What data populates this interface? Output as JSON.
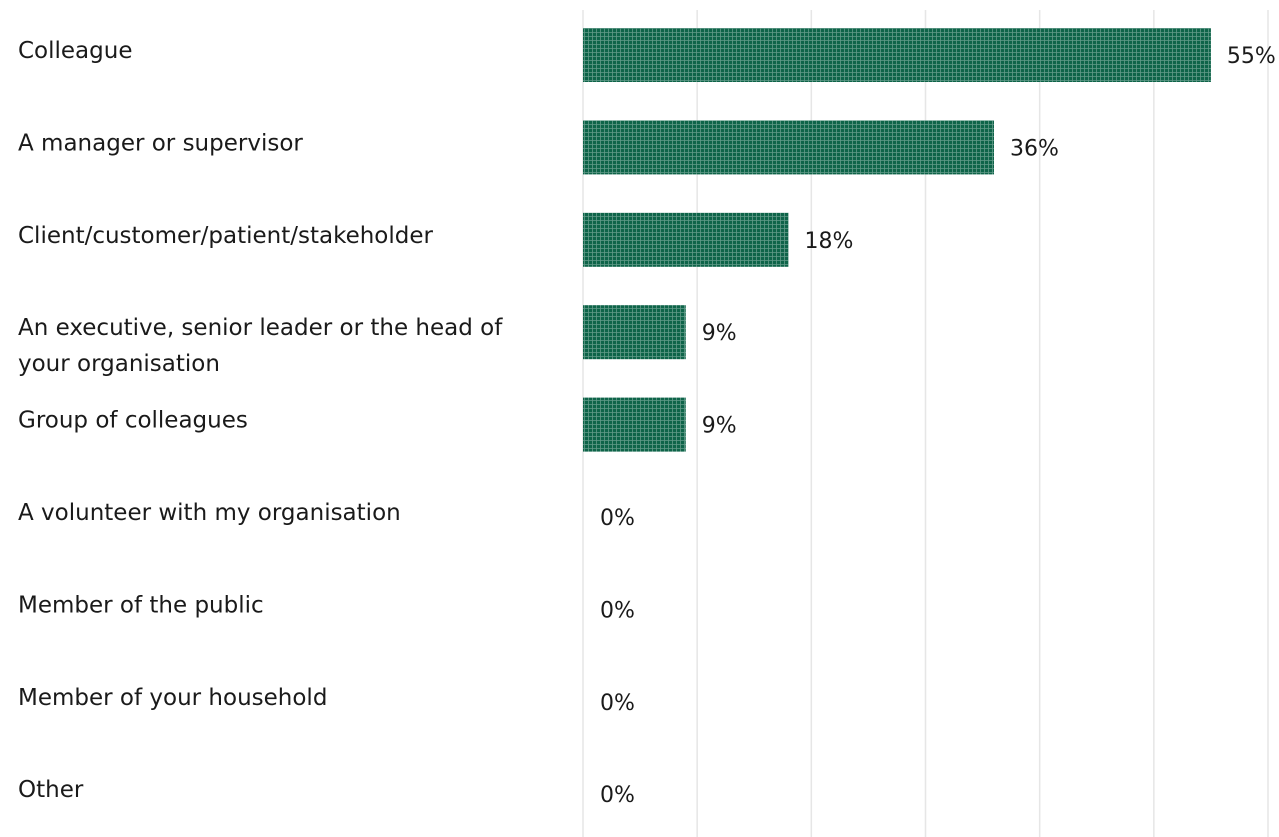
{
  "chart_data": {
    "type": "bar",
    "orientation": "horizontal",
    "categories": [
      "Colleague",
      "A manager or supervisor",
      "Client/customer/patient/stakeholder",
      "An executive, senior leader or the head of your organisation",
      "Group of colleagues",
      "A volunteer with my organisation",
      "Member of the public",
      "Member of your household",
      "Other"
    ],
    "values": [
      55,
      36,
      18,
      9,
      9,
      0,
      0,
      0,
      0
    ],
    "value_labels": [
      "55%",
      "36%",
      "18%",
      "9%",
      "9%",
      "0%",
      "0%",
      "0%",
      "0%"
    ],
    "xlim": [
      0,
      60
    ],
    "grid": true,
    "legend": "none",
    "colors": {
      "bar": "#0e6449",
      "bar_texture": "#ffffff",
      "grid": "#e6e6e6",
      "text": "#1a1a1a"
    }
  }
}
